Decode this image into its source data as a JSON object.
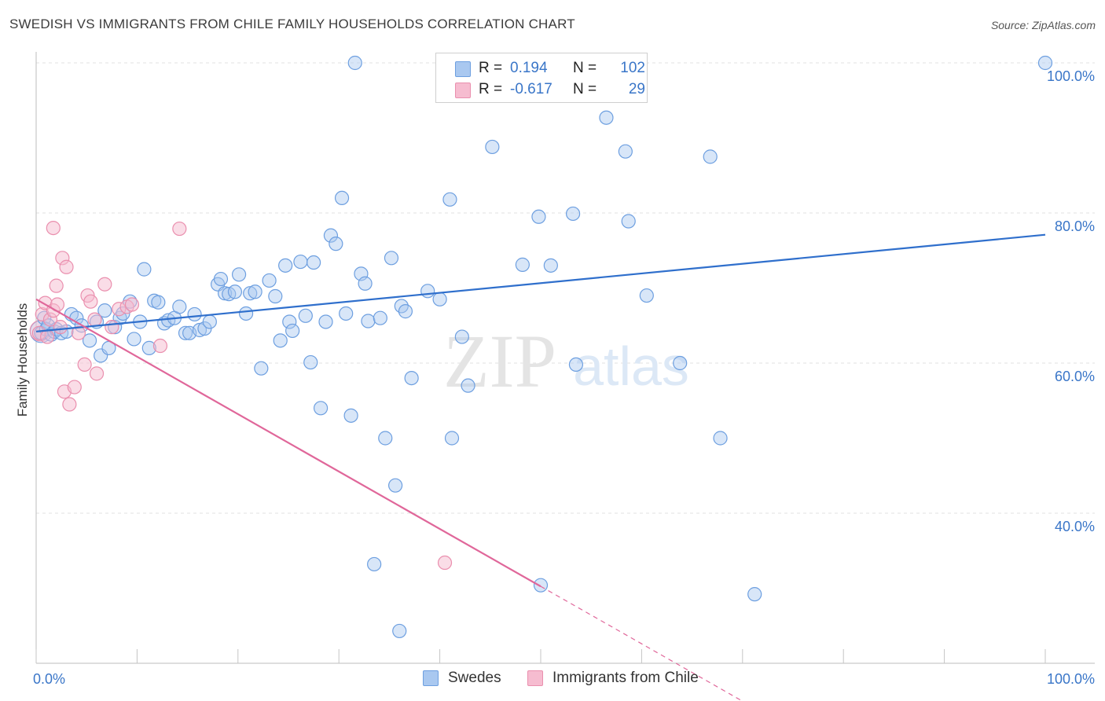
{
  "title": "SWEDISH VS IMMIGRANTS FROM CHILE FAMILY HOUSEHOLDS CORRELATION CHART",
  "source": "Source: ZipAtlas.com",
  "watermark": {
    "zip": "ZIP",
    "atlas": "atlas"
  },
  "legend": {
    "rows": [
      {
        "r_label": "R =",
        "r_value": "0.194",
        "n_label": "N =",
        "n_value": "102"
      },
      {
        "r_label": "R =",
        "r_value": "-0.617",
        "n_label": "N =",
        "n_value": "29"
      }
    ]
  },
  "bottom_legend": {
    "swedes": "Swedes",
    "chile": "Immigrants from Chile"
  },
  "colors": {
    "swedes_fill": "#a9c8f0",
    "swedes_stroke": "#6d9fe0",
    "swedes_line": "#2f6fcc",
    "chile_fill": "#f6bcd0",
    "chile_stroke": "#ea8fae",
    "chile_line": "#e0679a",
    "axis_text": "#3a76c8",
    "grid": "#e2e2e2"
  },
  "chart_data": {
    "type": "scatter",
    "title": "SWEDISH VS IMMIGRANTS FROM CHILE FAMILY HOUSEHOLDS CORRELATION CHART",
    "xlabel": "",
    "ylabel": "Family Households",
    "xlim": [
      0,
      100
    ],
    "ylim": [
      20,
      100
    ],
    "x_tick_labels": [
      "0.0%",
      "100.0%"
    ],
    "y_ticks": [
      {
        "value": 100,
        "label": "100.0%"
      },
      {
        "value": 80,
        "label": "80.0%"
      },
      {
        "value": 60,
        "label": "60.0%"
      },
      {
        "value": 40,
        "label": "40.0%"
      }
    ],
    "grid": true,
    "legend_position": "top-center",
    "series": [
      {
        "name": "Swedes",
        "r": 0.194,
        "n": 102,
        "trend": {
          "x": [
            0,
            100
          ],
          "y": [
            64.2,
            77.1
          ]
        },
        "points": [
          [
            0.5,
            64
          ],
          [
            0.8,
            66
          ],
          [
            1.0,
            64.5
          ],
          [
            1.2,
            65
          ],
          [
            1.5,
            63.8
          ],
          [
            1.8,
            64.2
          ],
          [
            2.0,
            64.5
          ],
          [
            2.5,
            64
          ],
          [
            3.0,
            64.2
          ],
          [
            3.5,
            66.5
          ],
          [
            4.0,
            66
          ],
          [
            4.5,
            65
          ],
          [
            5.3,
            63
          ],
          [
            6.0,
            65.5
          ],
          [
            6.4,
            61
          ],
          [
            6.8,
            67
          ],
          [
            7.2,
            62
          ],
          [
            7.8,
            64.8
          ],
          [
            8.3,
            66
          ],
          [
            8.6,
            66.6
          ],
          [
            9.3,
            68.2
          ],
          [
            9.7,
            63.2
          ],
          [
            10.3,
            65.5
          ],
          [
            10.7,
            72.5
          ],
          [
            11.2,
            62
          ],
          [
            11.7,
            68.3
          ],
          [
            12.1,
            68.1
          ],
          [
            12.7,
            65.3
          ],
          [
            13.1,
            65.7
          ],
          [
            13.7,
            66
          ],
          [
            14.2,
            67.5
          ],
          [
            14.8,
            64
          ],
          [
            15.2,
            64
          ],
          [
            15.7,
            66.5
          ],
          [
            16.2,
            64.4
          ],
          [
            16.7,
            64.6
          ],
          [
            17.2,
            65.5
          ],
          [
            18.0,
            70.5
          ],
          [
            18.3,
            71.2
          ],
          [
            18.7,
            69.3
          ],
          [
            19.1,
            69.2
          ],
          [
            19.7,
            69.5
          ],
          [
            20.1,
            71.8
          ],
          [
            20.8,
            66.6
          ],
          [
            21.2,
            69.3
          ],
          [
            21.7,
            69.5
          ],
          [
            22.3,
            59.3
          ],
          [
            23.1,
            71
          ],
          [
            23.7,
            68.9
          ],
          [
            24.2,
            63
          ],
          [
            24.7,
            73
          ],
          [
            25.1,
            65.5
          ],
          [
            25.4,
            64.3
          ],
          [
            26.2,
            73.5
          ],
          [
            26.7,
            66.3
          ],
          [
            27.2,
            60.1
          ],
          [
            27.5,
            73.4
          ],
          [
            28.2,
            54
          ],
          [
            28.7,
            65.5
          ],
          [
            29.2,
            77
          ],
          [
            29.7,
            75.9
          ],
          [
            30.3,
            82
          ],
          [
            30.7,
            66.6
          ],
          [
            31.2,
            53
          ],
          [
            31.6,
            100
          ],
          [
            32.2,
            71.9
          ],
          [
            32.6,
            70.6
          ],
          [
            32.9,
            65.6
          ],
          [
            34.1,
            66
          ],
          [
            34.6,
            50
          ],
          [
            35.2,
            74
          ],
          [
            35.6,
            43.7
          ],
          [
            36.2,
            67.6
          ],
          [
            36.6,
            66.9
          ],
          [
            36.0,
            24.3
          ],
          [
            33.5,
            33.2
          ],
          [
            37.2,
            58
          ],
          [
            38.8,
            69.6
          ],
          [
            40.0,
            68.5
          ],
          [
            41.0,
            81.8
          ],
          [
            41.2,
            50
          ],
          [
            42.2,
            63.5
          ],
          [
            42.8,
            57
          ],
          [
            43.8,
            100
          ],
          [
            45.2,
            88.8
          ],
          [
            47.6,
            100
          ],
          [
            48.2,
            73.1
          ],
          [
            49.8,
            79.5
          ],
          [
            50.0,
            30.4
          ],
          [
            51.0,
            73
          ],
          [
            53.2,
            79.9
          ],
          [
            53.5,
            59.8
          ],
          [
            56.1,
            100
          ],
          [
            56.5,
            92.7
          ],
          [
            58.4,
            88.2
          ],
          [
            58.7,
            78.9
          ],
          [
            60.5,
            69
          ],
          [
            63.8,
            60
          ],
          [
            66.8,
            87.5
          ],
          [
            67.8,
            50
          ],
          [
            71.2,
            29.2
          ],
          [
            100,
            100
          ]
        ]
      },
      {
        "name": "Immigrants from Chile",
        "r": -0.617,
        "n": 29,
        "trend": {
          "x": [
            0,
            100
          ],
          "y": [
            68.5,
            -8.0
          ]
        },
        "trend_solid_to_x": 50,
        "trend_visible_to_x": 72,
        "points": [
          [
            0.3,
            64
          ],
          [
            0.6,
            66.5
          ],
          [
            0.9,
            68
          ],
          [
            1.1,
            63.5
          ],
          [
            1.4,
            65.8
          ],
          [
            1.7,
            67
          ],
          [
            1.7,
            78
          ],
          [
            2.0,
            70.3
          ],
          [
            2.1,
            67.8
          ],
          [
            2.4,
            64.8
          ],
          [
            2.6,
            74
          ],
          [
            2.8,
            56.2
          ],
          [
            3.0,
            72.8
          ],
          [
            3.3,
            54.5
          ],
          [
            3.8,
            56.8
          ],
          [
            4.2,
            64
          ],
          [
            4.8,
            59.8
          ],
          [
            5.1,
            69
          ],
          [
            5.4,
            68.2
          ],
          [
            5.8,
            65.8
          ],
          [
            6.0,
            58.6
          ],
          [
            6.8,
            70.5
          ],
          [
            7.5,
            64.8
          ],
          [
            8.2,
            67.2
          ],
          [
            9.0,
            67.5
          ],
          [
            9.5,
            67.8
          ],
          [
            12.3,
            62.3
          ],
          [
            14.2,
            77.9
          ],
          [
            40.5,
            33.4
          ]
        ]
      }
    ]
  }
}
